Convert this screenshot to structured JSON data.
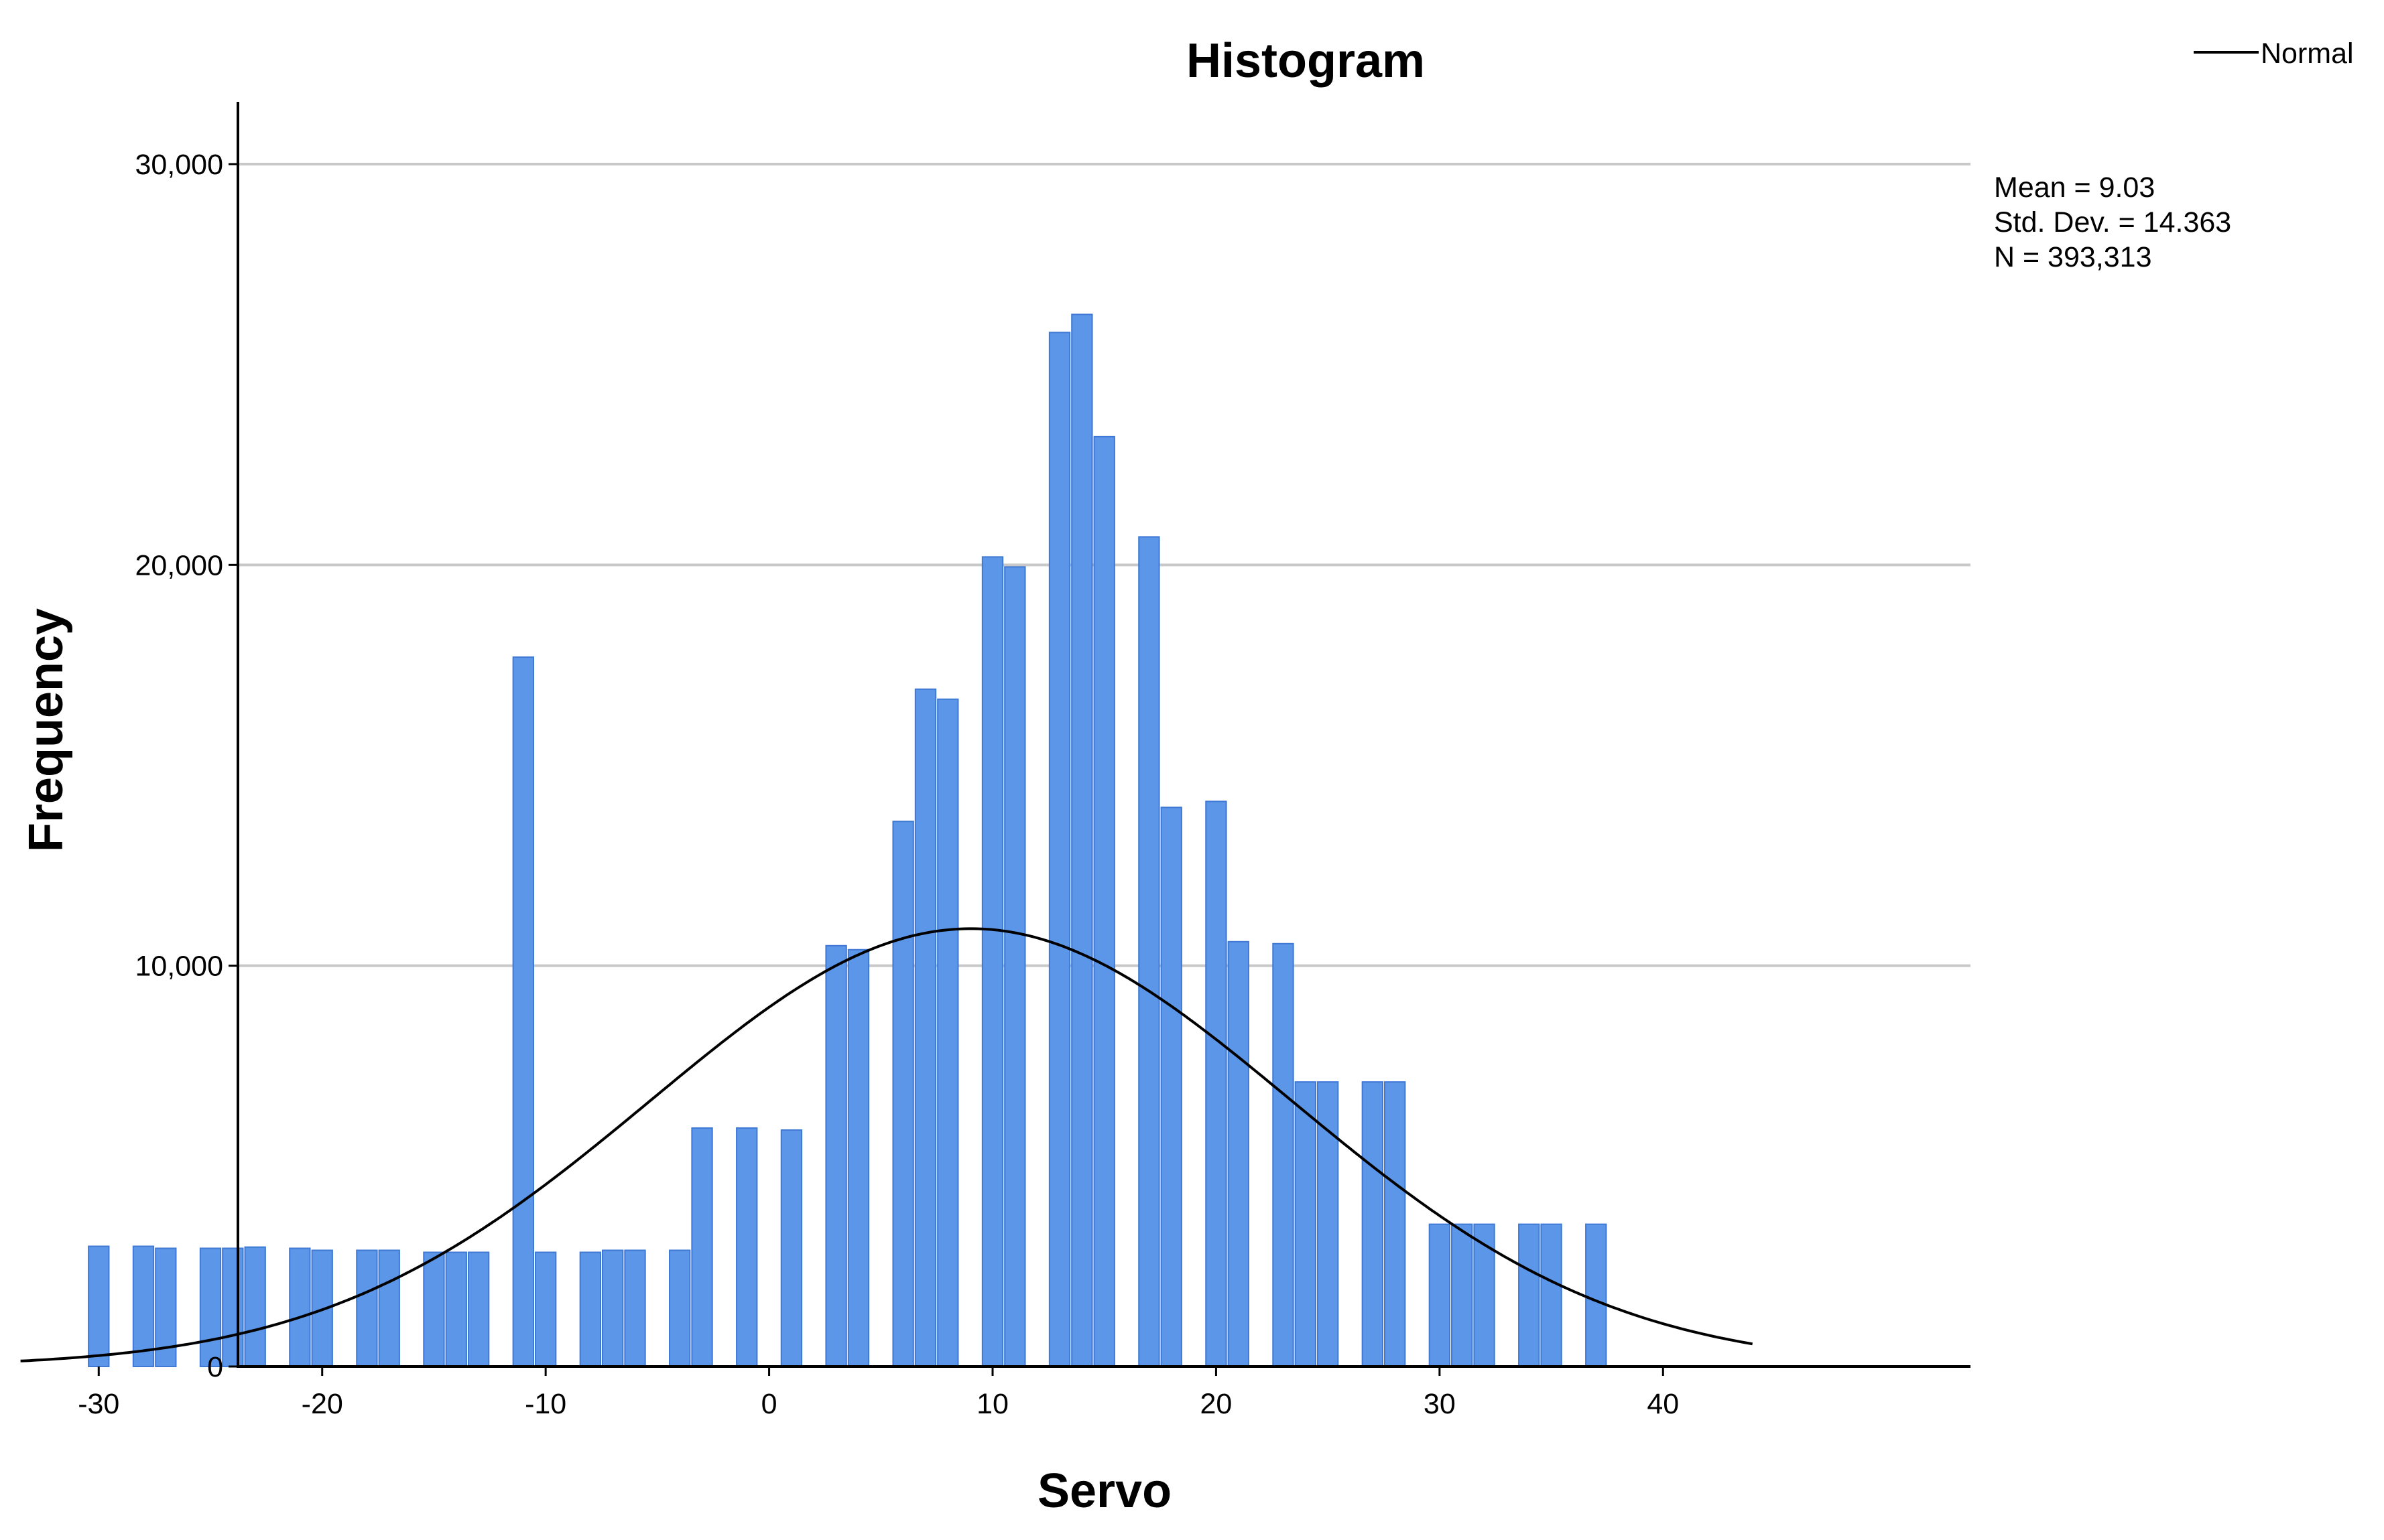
{
  "chart_data": {
    "type": "bar",
    "title": "Histogram",
    "xlabel": "Servo",
    "ylabel": "Frequency",
    "xlim": [
      -33.5,
      44
    ],
    "ylim": [
      0,
      31500
    ],
    "x_ticks": [
      -30,
      -20,
      -10,
      0,
      10,
      20,
      30,
      40
    ],
    "x_tick_labels": [
      "-30",
      "-20",
      "-10",
      "0",
      "10",
      "20",
      "30",
      "40"
    ],
    "y_ticks": [
      0,
      10000,
      20000,
      30000
    ],
    "y_tick_labels": [
      "0",
      "10,000",
      "20,000",
      "30,000"
    ],
    "grid": "horizontal",
    "bin_width": 1,
    "bins": [
      {
        "x": -30,
        "value": 3000
      },
      {
        "x": -28,
        "value": 3000
      },
      {
        "x": -27,
        "value": 2950
      },
      {
        "x": -25,
        "value": 2950
      },
      {
        "x": -24,
        "value": 2950
      },
      {
        "x": -23,
        "value": 2980
      },
      {
        "x": -21,
        "value": 2950
      },
      {
        "x": -20,
        "value": 2900
      },
      {
        "x": -18,
        "value": 2900
      },
      {
        "x": -17,
        "value": 2900
      },
      {
        "x": -15,
        "value": 2850
      },
      {
        "x": -14,
        "value": 2850
      },
      {
        "x": -13,
        "value": 2850
      },
      {
        "x": -11,
        "value": 17700
      },
      {
        "x": -10,
        "value": 2850
      },
      {
        "x": -8,
        "value": 2850
      },
      {
        "x": -7,
        "value": 2900
      },
      {
        "x": -6,
        "value": 2900
      },
      {
        "x": -4,
        "value": 2900
      },
      {
        "x": -3,
        "value": 5950
      },
      {
        "x": -1,
        "value": 5950
      },
      {
        "x": 1,
        "value": 5900
      },
      {
        "x": 3,
        "value": 10500
      },
      {
        "x": 4,
        "value": 10400
      },
      {
        "x": 6,
        "value": 13600
      },
      {
        "x": 7,
        "value": 16900
      },
      {
        "x": 8,
        "value": 16650
      },
      {
        "x": 10,
        "value": 20200
      },
      {
        "x": 11,
        "value": 19950
      },
      {
        "x": 13,
        "value": 25800
      },
      {
        "x": 14,
        "value": 26250
      },
      {
        "x": 15,
        "value": 23200
      },
      {
        "x": 17,
        "value": 20700
      },
      {
        "x": 18,
        "value": 13950
      },
      {
        "x": 20,
        "value": 14100
      },
      {
        "x": 21,
        "value": 10600
      },
      {
        "x": 23,
        "value": 10550
      },
      {
        "x": 24,
        "value": 7100
      },
      {
        "x": 25,
        "value": 7100
      },
      {
        "x": 27,
        "value": 7100
      },
      {
        "x": 28,
        "value": 7100
      },
      {
        "x": 30,
        "value": 3550
      },
      {
        "x": 31,
        "value": 3550
      },
      {
        "x": 32,
        "value": 3550
      },
      {
        "x": 34,
        "value": 3550
      },
      {
        "x": 35,
        "value": 3550
      },
      {
        "x": 37,
        "value": 3550
      }
    ],
    "bar_color": "#5b96e8",
    "bar_edge_color": "#3f79d4",
    "normal_curve": {
      "name": "Normal",
      "mean": 9.03,
      "std_dev": 14.363,
      "n": 393313,
      "color": "#000000"
    },
    "stats": [
      "Mean = 9.03",
      "Std. Dev. = 14.363",
      "N = 393,313"
    ],
    "legend": {
      "entries": [
        "Normal"
      ],
      "position": "top-right"
    }
  }
}
